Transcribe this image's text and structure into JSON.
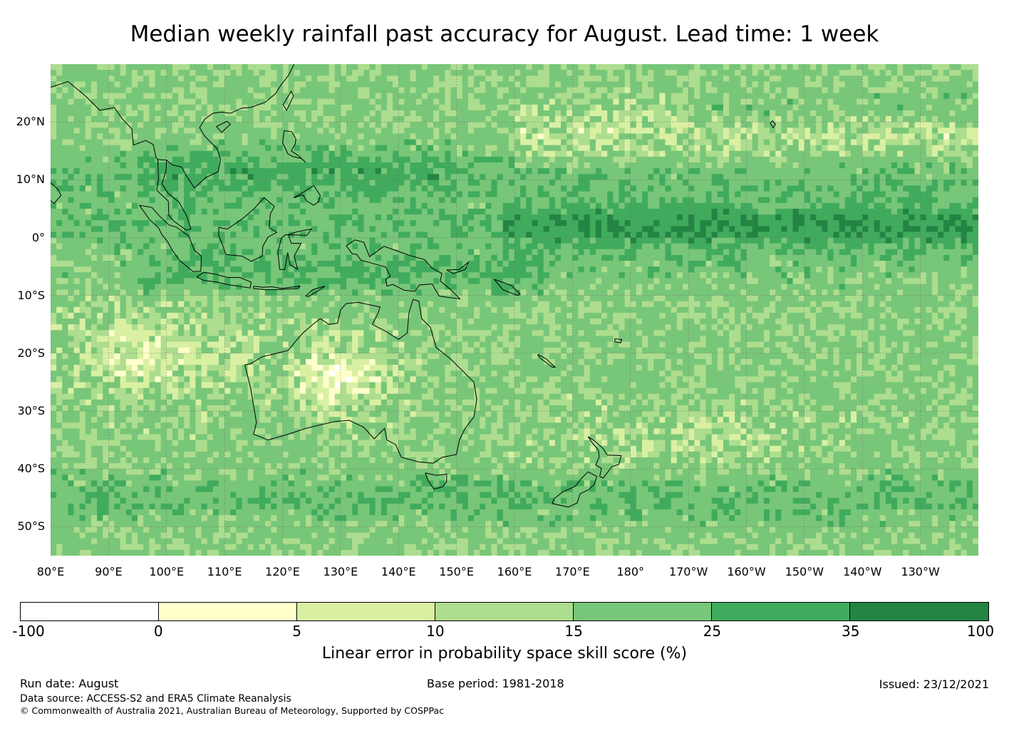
{
  "title": "Median weekly rainfall past accuracy for August. Lead time: 1 week",
  "map": {
    "lat_labels": [
      "20°N",
      "10°N",
      "0°",
      "10°S",
      "20°S",
      "30°S",
      "40°S",
      "50°S"
    ],
    "lon_labels": [
      "80°E",
      "90°E",
      "100°E",
      "110°E",
      "120°E",
      "130°E",
      "140°E",
      "150°E",
      "160°E",
      "170°E",
      "180°",
      "170°W",
      "160°W",
      "150°W",
      "140°W",
      "130°W"
    ],
    "region_labels": [],
    "coastline_color": "#000000",
    "gridline_color": "#666666"
  },
  "colorbar": {
    "tick_labels": [
      "-100",
      "0",
      "5",
      "10",
      "15",
      "25",
      "35",
      "100"
    ],
    "colors": [
      "#ffffff",
      "#ffffcc",
      "#d9f0a3",
      "#addd8e",
      "#78c679",
      "#41ab5d",
      "#238443"
    ],
    "label": "Linear error in probability space skill score (%)"
  },
  "footer": {
    "run_date": "Run date: August",
    "base_period": "Base period: 1981-2018",
    "issued": "Issued: 23/12/2021",
    "data_source": "Data source: ACCESS-S2 and ERA5 Climate Reanalysis",
    "copyright": "© Commonwealth of Australia 2021, Australian Bureau of Meteorology, Supported by COSPPac"
  }
}
